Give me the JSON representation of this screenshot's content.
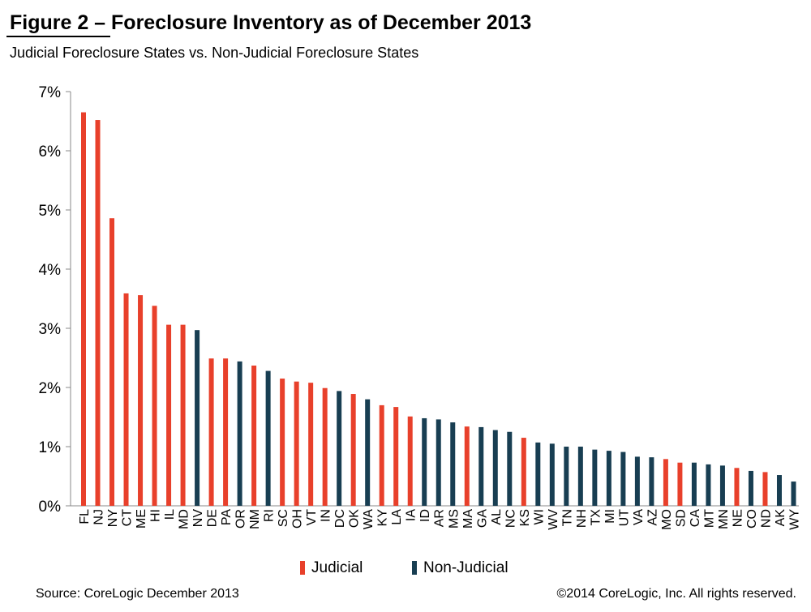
{
  "header": {
    "title": "Figure 2 – Foreclosure Inventory as of December 2013",
    "subtitle": "Judicial Foreclosure States vs. Non-Judicial Foreclosure States"
  },
  "footer": {
    "source": "Source: CoreLogic  December 2013",
    "copyright": "©2014 CoreLogic, Inc.  All rights reserved."
  },
  "colors": {
    "judicial": "#e8402b",
    "non_judicial": "#183e52"
  },
  "chart_data": {
    "type": "bar",
    "title": "Figure 2 – Foreclosure Inventory as of December 2013",
    "subtitle": "Judicial Foreclosure States vs. Non-Judicial Foreclosure States",
    "xlabel": "",
    "ylabel": "",
    "ylim": [
      0,
      7
    ],
    "yticks": [
      "0%",
      "1%",
      "2%",
      "3%",
      "4%",
      "5%",
      "6%",
      "7%"
    ],
    "grid": false,
    "legend_position": "bottom",
    "legend": [
      {
        "name": "Judicial",
        "group": "J"
      },
      {
        "name": "Non-Judicial",
        "group": "N"
      }
    ],
    "categories": [
      "FL",
      "NJ",
      "NY",
      "CT",
      "ME",
      "HI",
      "IL",
      "MD",
      "NV",
      "DE",
      "PA",
      "OR",
      "NM",
      "RI",
      "SC",
      "OH",
      "VT",
      "IN",
      "DC",
      "OK",
      "WA",
      "KY",
      "LA",
      "IA",
      "ID",
      "AR",
      "MS",
      "MA",
      "GA",
      "AL",
      "NC",
      "KS",
      "WI",
      "WV",
      "TN",
      "NH",
      "TX",
      "MI",
      "UT",
      "VA",
      "AZ",
      "MO",
      "SD",
      "CA",
      "MT",
      "MN",
      "NE",
      "CO",
      "ND",
      "AK",
      "WY"
    ],
    "values": [
      6.65,
      6.52,
      4.86,
      3.59,
      3.56,
      3.38,
      3.06,
      3.06,
      2.97,
      2.49,
      2.49,
      2.44,
      2.37,
      2.28,
      2.15,
      2.1,
      2.08,
      1.99,
      1.94,
      1.89,
      1.8,
      1.7,
      1.67,
      1.51,
      1.48,
      1.46,
      1.41,
      1.34,
      1.33,
      1.28,
      1.25,
      1.15,
      1.07,
      1.05,
      1.0,
      1.0,
      0.95,
      0.93,
      0.91,
      0.83,
      0.82,
      0.79,
      0.73,
      0.73,
      0.7,
      0.68,
      0.64,
      0.59,
      0.57,
      0.52,
      0.41
    ],
    "groups": [
      "J",
      "J",
      "J",
      "J",
      "J",
      "J",
      "J",
      "J",
      "N",
      "J",
      "J",
      "N",
      "J",
      "N",
      "J",
      "J",
      "J",
      "J",
      "N",
      "J",
      "N",
      "J",
      "J",
      "J",
      "N",
      "N",
      "N",
      "J",
      "N",
      "N",
      "N",
      "J",
      "N",
      "N",
      "N",
      "N",
      "N",
      "N",
      "N",
      "N",
      "N",
      "J",
      "J",
      "N",
      "N",
      "N",
      "J",
      "N",
      "J",
      "N",
      "N"
    ]
  }
}
